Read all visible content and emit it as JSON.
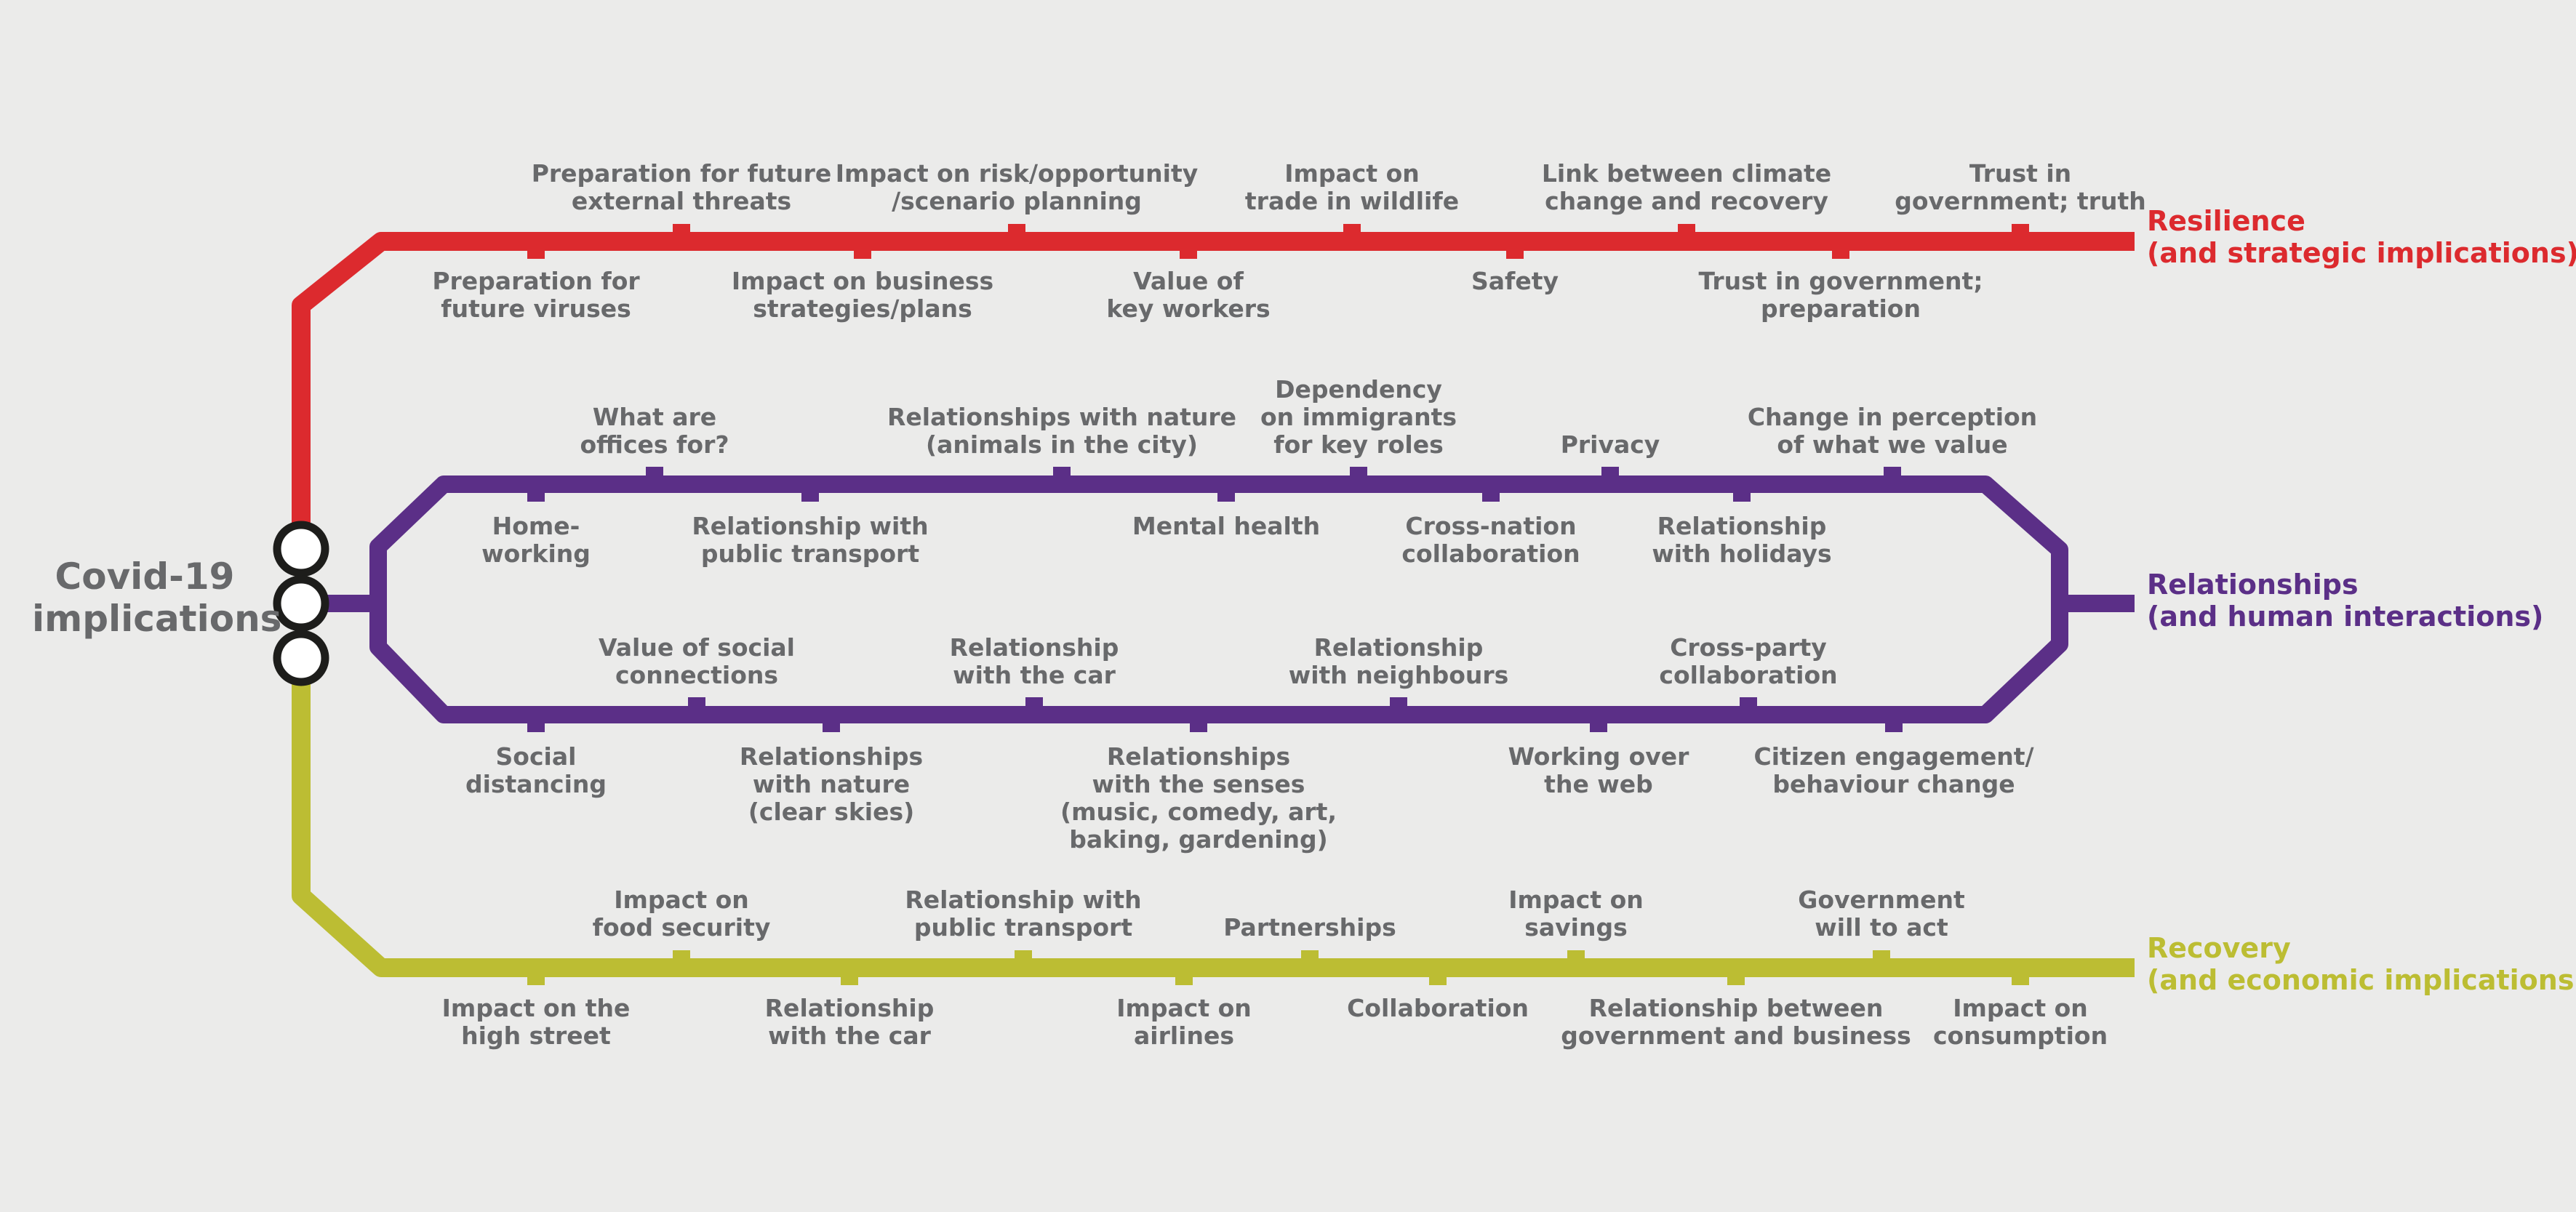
{
  "hub": {
    "title_line1": "Covid-19",
    "title_line2": "implications"
  },
  "lines": {
    "resilience": {
      "name": "Resilience",
      "subtitle": "(and strategic implications)",
      "color": "#dc2a2e",
      "above": [
        "Preparation for future\nexternal threats",
        "Impact on risk/opportunity\n/scenario planning",
        "Impact on\ntrade in wildlife",
        "Link between climate\nchange and recovery",
        "Trust in\ngovernment; truth"
      ],
      "below": [
        "Preparation for\nfuture viruses",
        "Impact on business\nstrategies/plans",
        "Value of\nkey workers",
        "Safety",
        "Trust in government;\npreparation"
      ]
    },
    "relationships": {
      "name": "Relationships",
      "subtitle": "(and human interactions)",
      "color": "#5b2f87",
      "upper_above": [
        "What are\noffices for?",
        "Relationships with nature\n(animals in the city)",
        "Dependency\non immigrants\nfor key roles",
        "Privacy",
        "Change in perception\nof what we value"
      ],
      "upper_below": [
        "Home-\nworking",
        "Relationship with\npublic transport",
        "Mental health",
        "Cross-nation\ncollaboration",
        "Relationship\nwith holidays"
      ],
      "lower_above": [
        "Value of social\nconnections",
        "Relationship\nwith the car",
        "Relationship\nwith neighbours",
        "Cross-party\ncollaboration"
      ],
      "lower_below": [
        "Social\ndistancing",
        "Relationships\nwith nature\n(clear skies)",
        "Relationships\nwith the senses\n(music, comedy, art,\nbaking, gardening)",
        "Working over\nthe web",
        "Citizen engagement/\nbehaviour change"
      ]
    },
    "recovery": {
      "name": "Recovery",
      "subtitle": "(and economic implications)",
      "color": "#bcbd33",
      "above": [
        "Impact on\nfood security",
        "Relationship with\npublic transport",
        "Partnerships",
        "Impact on\nsavings",
        "Government\nwill to act"
      ],
      "below": [
        "Impact on the\nhigh street",
        "Relationship\nwith the car",
        "Impact on\nairlines",
        "Collaboration",
        "Relationship between\ngovernment and business",
        "Impact on\nconsumption"
      ]
    }
  },
  "colors": {
    "text": "#68696b",
    "hub_stroke": "#1d1d1b",
    "background": "#ebebea"
  }
}
